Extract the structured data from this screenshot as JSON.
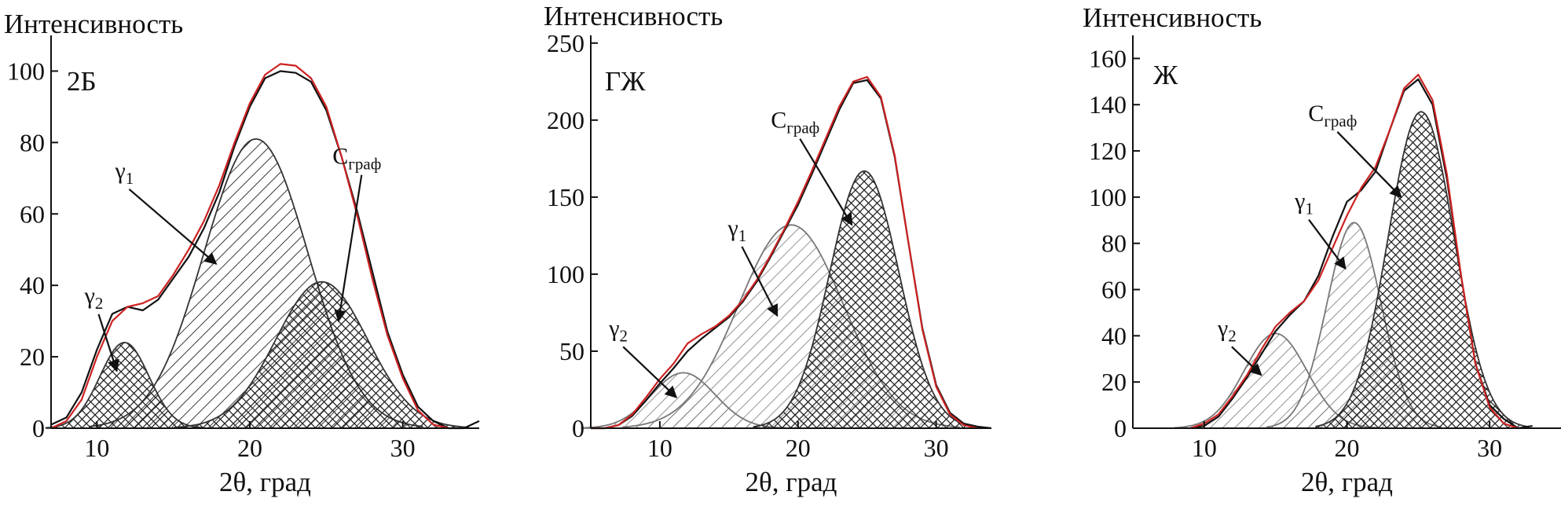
{
  "chart_data": [
    {
      "type": "area",
      "panel_label": "2Б",
      "ylabel": "Интенсивность",
      "xlabel": "2θ, град",
      "xlim": [
        7,
        35
      ],
      "ylim": [
        0,
        110
      ],
      "x_ticks": [
        10,
        20,
        30
      ],
      "y_ticks": [
        0,
        20,
        40,
        60,
        80,
        100
      ],
      "grid": false,
      "peaks": [
        {
          "name": "γ2",
          "center": 11.8,
          "height": 24,
          "sigma": 1.6,
          "hatch": "crosshatch"
        },
        {
          "name": "γ1",
          "center": 20.4,
          "height": 81,
          "sigma": 3.4,
          "hatch": "diagonal"
        },
        {
          "name": "Cграф",
          "center": 24.7,
          "height": 41,
          "sigma": 3.0,
          "hatch": "crosshatch"
        }
      ],
      "annotations": [
        {
          "base": "γ",
          "sub": "2",
          "label_x": 9.8,
          "label_y": 35,
          "arrow_to_x": 11.3,
          "arrow_to_y": 16
        },
        {
          "base": "γ",
          "sub": "1",
          "label_x": 11.8,
          "label_y": 70,
          "arrow_to_x": 17.8,
          "arrow_to_y": 46
        },
        {
          "base": "C",
          "sub": "граф",
          "label_x": 27.0,
          "label_y": 74,
          "arrow_to_x": 25.8,
          "arrow_to_y": 30
        }
      ],
      "series": [
        {
          "name": "",
          "color": "#111111",
          "x": [
            7,
            8,
            9,
            10,
            11,
            12,
            13,
            14,
            15,
            16,
            17,
            18,
            19,
            20,
            21,
            22,
            23,
            24,
            25,
            26,
            27,
            28,
            29,
            30,
            31,
            32,
            33,
            34,
            35
          ],
          "y": [
            1,
            3,
            10,
            22,
            32,
            34,
            33,
            36,
            42,
            48,
            56,
            66,
            79,
            90,
            98,
            100,
            99.5,
            97,
            89,
            76,
            61,
            44,
            27,
            15,
            6,
            2,
            0,
            0,
            2
          ]
        },
        {
          "name": "",
          "color": "#cc2222",
          "x": [
            7,
            8,
            9,
            10,
            11,
            12,
            13,
            14,
            15,
            16,
            17,
            18,
            19,
            20,
            21,
            22,
            23,
            24,
            25,
            26,
            27,
            28,
            29,
            30,
            31,
            32,
            33
          ],
          "y": [
            0,
            2,
            8,
            20,
            30,
            34,
            35,
            37,
            43,
            50,
            58,
            68,
            80,
            91,
            99,
            102,
            101.5,
            98,
            90,
            76,
            60,
            42,
            26,
            14,
            5,
            1,
            0
          ]
        }
      ]
    },
    {
      "type": "area",
      "panel_label": "ГЖ",
      "ylabel": "Интенсивность",
      "xlabel": "2θ, град",
      "xlim": [
        5,
        34
      ],
      "ylim": [
        0,
        255
      ],
      "x_ticks": [
        10,
        20,
        30
      ],
      "y_ticks": [
        0,
        50,
        100,
        150,
        200,
        250
      ],
      "grid": false,
      "peaks": [
        {
          "name": "γ2",
          "center": 11.7,
          "height": 36,
          "sigma": 2.3,
          "hatch": "diagonal-light"
        },
        {
          "name": "γ1",
          "center": 19.5,
          "height": 132,
          "sigma": 3.8,
          "hatch": "diagonal-light"
        },
        {
          "name": "Cграф",
          "center": 24.8,
          "height": 167,
          "sigma": 2.5,
          "hatch": "crosshatch"
        }
      ],
      "annotations": [
        {
          "base": "γ",
          "sub": "2",
          "label_x": 7.0,
          "label_y": 60,
          "arrow_to_x": 11.2,
          "arrow_to_y": 20
        },
        {
          "base": "γ",
          "sub": "1",
          "label_x": 15.6,
          "label_y": 125,
          "arrow_to_x": 18.5,
          "arrow_to_y": 73
        },
        {
          "base": "C",
          "sub": "граф",
          "label_x": 19.8,
          "label_y": 195,
          "arrow_to_x": 23.9,
          "arrow_to_y": 132
        }
      ],
      "series": [
        {
          "name": "",
          "color": "#111111",
          "x": [
            5,
            6,
            7,
            8,
            9,
            10,
            11,
            12,
            13,
            14,
            15,
            16,
            17,
            18,
            19,
            20,
            21,
            22,
            23,
            24,
            25,
            26,
            27,
            28,
            29,
            30,
            31,
            32,
            33,
            34
          ],
          "y": [
            0,
            0,
            2,
            8,
            18,
            29,
            39,
            50,
            58,
            65,
            72,
            82,
            95,
            111,
            128,
            145,
            165,
            186,
            207,
            224,
            226,
            214,
            176,
            120,
            65,
            28,
            10,
            3,
            1,
            0
          ]
        },
        {
          "name": "",
          "color": "#cc2222",
          "x": [
            5,
            6,
            7,
            8,
            9,
            10,
            11,
            12,
            13,
            14,
            15,
            16,
            17,
            18,
            19,
            20,
            21,
            22,
            23,
            24,
            25,
            26,
            27,
            28,
            29,
            30,
            31,
            32,
            33
          ],
          "y": [
            0,
            0,
            2,
            9,
            20,
            32,
            42,
            55,
            61,
            66,
            73,
            83,
            96,
            112,
            129,
            147,
            167,
            188,
            209,
            225,
            228,
            215,
            177,
            120,
            64,
            27,
            9,
            2,
            0
          ]
        }
      ]
    },
    {
      "type": "area",
      "panel_label": "Ж",
      "ylabel": "Интенсивность",
      "xlabel": "2θ, град",
      "xlim": [
        5,
        35
      ],
      "ylim": [
        0,
        170
      ],
      "x_ticks": [
        10,
        20,
        30
      ],
      "y_ticks": [
        0,
        20,
        40,
        60,
        80,
        100,
        120,
        140,
        160
      ],
      "grid": false,
      "peaks": [
        {
          "name": "γ2",
          "center": 15.0,
          "height": 41,
          "sigma": 2.2,
          "hatch": "diagonal-light"
        },
        {
          "name": "γ1",
          "center": 20.5,
          "height": 89,
          "sigma": 1.9,
          "hatch": "diagonal-light"
        },
        {
          "name": "Cграф",
          "center": 25.2,
          "height": 137,
          "sigma": 2.3,
          "hatch": "crosshatch"
        }
      ],
      "annotations": [
        {
          "base": "γ",
          "sub": "2",
          "label_x": 11.6,
          "label_y": 40,
          "arrow_to_x": 14.0,
          "arrow_to_y": 23
        },
        {
          "base": "γ",
          "sub": "1",
          "label_x": 17.0,
          "label_y": 95,
          "arrow_to_x": 19.9,
          "arrow_to_y": 69
        },
        {
          "base": "C",
          "sub": "граф",
          "label_x": 19.0,
          "label_y": 133,
          "arrow_to_x": 23.8,
          "arrow_to_y": 100
        }
      ],
      "series": [
        {
          "name": "",
          "color": "#111111",
          "x": [
            9,
            10,
            11,
            12,
            13,
            14,
            15,
            16,
            17,
            18,
            19,
            20,
            21,
            22,
            23,
            24,
            25,
            26,
            27,
            28,
            29,
            30,
            31,
            32,
            33
          ],
          "y": [
            0,
            1,
            5,
            13,
            22,
            32,
            42,
            49,
            55,
            66,
            83,
            98,
            103,
            111,
            129,
            146,
            151,
            140,
            108,
            66,
            28,
            10,
            4,
            0,
            1
          ]
        },
        {
          "name": "",
          "color": "#cc2222",
          "x": [
            9,
            10,
            11,
            12,
            13,
            14,
            15,
            16,
            17,
            18,
            19,
            20,
            21,
            22,
            23,
            24,
            25,
            26,
            27,
            28,
            29,
            30,
            31,
            32
          ],
          "y": [
            0,
            2,
            6,
            14,
            23,
            34,
            44,
            50,
            55,
            64,
            78,
            92,
            104,
            113,
            129,
            147,
            153,
            142,
            110,
            66,
            28,
            9,
            2,
            0
          ]
        }
      ]
    }
  ]
}
